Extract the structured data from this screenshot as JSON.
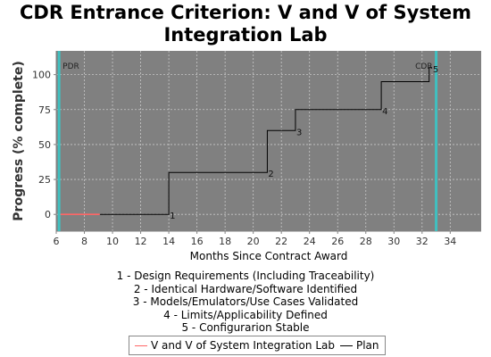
{
  "chart_data": {
    "type": "line",
    "title": "CDR Entrance Criterion: V and V of System Integration Lab",
    "xlabel": "Months Since Contract Award",
    "ylabel": "Progress (% complete)",
    "xlim": [
      6,
      36.2
    ],
    "ylim": [
      -12,
      117
    ],
    "xticks": [
      6,
      8,
      10,
      12,
      14,
      16,
      18,
      20,
      22,
      24,
      26,
      28,
      30,
      32,
      34
    ],
    "yticks": [
      0,
      25,
      50,
      75,
      100
    ],
    "grid": true,
    "background": "#808080",
    "series": [
      {
        "name": "V and V of System Integration Lab",
        "color": "#ff6666",
        "x": [
          6.3,
          9.1
        ],
        "y": [
          0,
          0
        ]
      },
      {
        "name": "Plan",
        "color": "#000000",
        "x": [
          9.1,
          14,
          14,
          21,
          21,
          23,
          23,
          29.1,
          29.1,
          32.5,
          32.5,
          32.7
        ],
        "y": [
          0,
          0,
          30,
          30,
          60,
          60,
          75,
          75,
          95,
          95,
          105,
          105
        ]
      }
    ],
    "milestone_points": [
      {
        "label": "1",
        "x": 14,
        "y": 0
      },
      {
        "label": "2",
        "x": 21,
        "y": 30
      },
      {
        "label": "3",
        "x": 23,
        "y": 60
      },
      {
        "label": "4",
        "x": 29.1,
        "y": 75
      },
      {
        "label": "5",
        "x": 32.7,
        "y": 105
      }
    ],
    "markers": [
      {
        "label": "PDR",
        "x": 6.2,
        "color": "#40c0c0"
      },
      {
        "label": "CDR",
        "x": 33,
        "color": "#40c0c0"
      }
    ],
    "milestone_notes": [
      "1 - Design Requirements (Including Traceability)",
      "2 - Identical Hardware/Software Identified",
      "3 - Models/Emulators/Use Cases Validated",
      "4 - Limits/Applicability Defined",
      "5 - Configurarion Stable"
    ],
    "legend": {
      "placement": "bottom",
      "entries": [
        "V and V of System Integration Lab",
        "Plan"
      ]
    }
  }
}
